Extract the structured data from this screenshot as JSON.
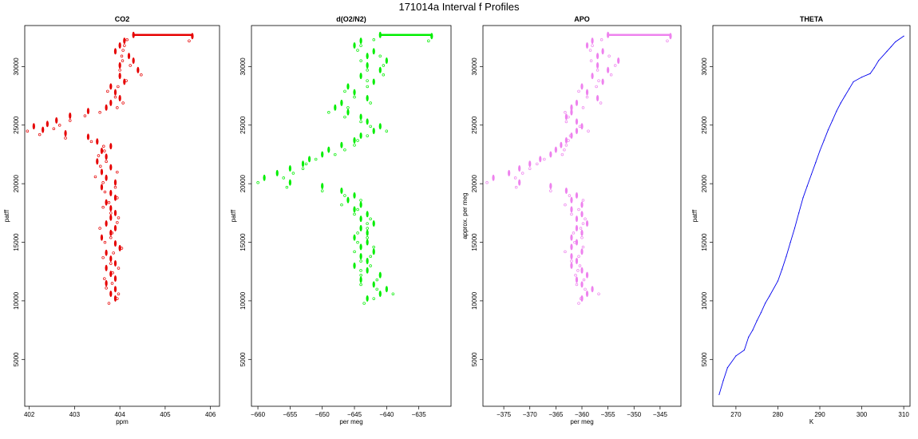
{
  "title": "171014a   Interval f Profiles",
  "chart_data": [
    {
      "type": "scatter",
      "title": "CO2",
      "xlabel": "ppm",
      "ylabel": "patff",
      "xlim": [
        401.9,
        406.2
      ],
      "ylim": [
        1000,
        33500
      ],
      "xticks": [
        402,
        403,
        404,
        405,
        406
      ],
      "yticks": [
        5000,
        10000,
        15000,
        20000,
        25000,
        30000
      ],
      "color": "#e60000",
      "points": [
        [
          404.3,
          32700
        ],
        [
          405.6,
          32600
        ],
        [
          404.1,
          32200
        ],
        [
          404.0,
          31800
        ],
        [
          403.9,
          31300
        ],
        [
          404.2,
          30900
        ],
        [
          404.3,
          30500
        ],
        [
          404.0,
          30100
        ],
        [
          404.4,
          29700
        ],
        [
          404.0,
          29200
        ],
        [
          404.1,
          28700
        ],
        [
          403.8,
          28300
        ],
        [
          403.9,
          27800
        ],
        [
          404.0,
          27300
        ],
        [
          403.8,
          26900
        ],
        [
          403.7,
          26500
        ],
        [
          403.3,
          26200
        ],
        [
          402.9,
          25800
        ],
        [
          402.6,
          25400
        ],
        [
          402.4,
          25100
        ],
        [
          402.1,
          24900
        ],
        [
          402.3,
          24600
        ],
        [
          402.8,
          24300
        ],
        [
          403.3,
          24000
        ],
        [
          403.5,
          23600
        ],
        [
          403.8,
          23200
        ],
        [
          403.6,
          22800
        ],
        [
          403.7,
          22300
        ],
        [
          403.5,
          21900
        ],
        [
          403.8,
          21400
        ],
        [
          403.6,
          21000
        ],
        [
          403.7,
          20500
        ],
        [
          403.9,
          20100
        ],
        [
          403.6,
          19700
        ],
        [
          403.8,
          19200
        ],
        [
          403.9,
          18800
        ],
        [
          403.7,
          18400
        ],
        [
          403.8,
          17900
        ],
        [
          403.9,
          17500
        ],
        [
          403.8,
          17100
        ],
        [
          403.7,
          16600
        ],
        [
          403.9,
          16200
        ],
        [
          403.8,
          15800
        ],
        [
          403.6,
          15400
        ],
        [
          403.9,
          14900
        ],
        [
          404.0,
          14500
        ],
        [
          403.7,
          14100
        ],
        [
          403.8,
          13600
        ],
        [
          403.9,
          13200
        ],
        [
          403.7,
          12800
        ],
        [
          403.8,
          12300
        ],
        [
          403.9,
          11900
        ],
        [
          403.7,
          11500
        ],
        [
          403.9,
          11000
        ],
        [
          403.8,
          10600
        ],
        [
          403.9,
          10200
        ]
      ]
    },
    {
      "type": "scatter",
      "title": "d(O2/N2)",
      "xlabel": "per meg",
      "ylabel": "patff",
      "xlim": [
        -661,
        -630
      ],
      "ylim": [
        1000,
        33500
      ],
      "xticks": [
        -660,
        -655,
        -650,
        -645,
        -640,
        -635
      ],
      "yticks": [
        5000,
        10000,
        15000,
        20000,
        25000,
        30000
      ],
      "color": "#00ee00",
      "points": [
        [
          -641,
          32700
        ],
        [
          -633,
          32600
        ],
        [
          -644,
          32200
        ],
        [
          -645,
          31800
        ],
        [
          -642,
          31300
        ],
        [
          -643,
          30900
        ],
        [
          -640,
          30500
        ],
        [
          -643,
          30100
        ],
        [
          -641,
          29700
        ],
        [
          -644,
          29200
        ],
        [
          -642,
          28700
        ],
        [
          -646,
          28300
        ],
        [
          -645,
          27800
        ],
        [
          -643,
          27300
        ],
        [
          -647,
          26900
        ],
        [
          -648,
          26500
        ],
        [
          -646,
          26100
        ],
        [
          -644,
          25700
        ],
        [
          -643,
          25300
        ],
        [
          -641,
          24900
        ],
        [
          -642,
          24500
        ],
        [
          -644,
          24100
        ],
        [
          -645,
          23700
        ],
        [
          -647,
          23300
        ],
        [
          -649,
          22900
        ],
        [
          -650,
          22500
        ],
        [
          -652,
          22100
        ],
        [
          -653,
          21700
        ],
        [
          -655,
          21300
        ],
        [
          -657,
          20900
        ],
        [
          -659,
          20500
        ],
        [
          -655,
          20100
        ],
        [
          -650,
          19800
        ],
        [
          -647,
          19400
        ],
        [
          -645,
          19000
        ],
        [
          -646,
          18600
        ],
        [
          -644,
          18200
        ],
        [
          -645,
          17800
        ],
        [
          -643,
          17400
        ],
        [
          -644,
          17000
        ],
        [
          -642,
          16600
        ],
        [
          -644,
          16200
        ],
        [
          -643,
          15800
        ],
        [
          -645,
          15400
        ],
        [
          -643,
          15000
        ],
        [
          -644,
          14600
        ],
        [
          -642,
          14200
        ],
        [
          -644,
          13800
        ],
        [
          -643,
          13400
        ],
        [
          -645,
          13000
        ],
        [
          -643,
          12600
        ],
        [
          -641,
          12200
        ],
        [
          -644,
          11800
        ],
        [
          -642,
          11400
        ],
        [
          -640,
          11000
        ],
        [
          -641,
          10600
        ],
        [
          -643,
          10200
        ]
      ]
    },
    {
      "type": "scatter",
      "title": "APO",
      "xlabel": "per meg",
      "ylabel": "approx. per meg",
      "xlim": [
        -379,
        -341
      ],
      "ylim": [
        1000,
        33500
      ],
      "xticks": [
        -375,
        -370,
        -365,
        -360,
        -355,
        -350,
        -345
      ],
      "yticks": [
        5000,
        10000,
        15000,
        20000,
        25000,
        30000
      ],
      "color": "#ee82ee",
      "points": [
        [
          -355,
          32700
        ],
        [
          -343,
          32600
        ],
        [
          -358,
          32200
        ],
        [
          -359,
          31800
        ],
        [
          -356,
          31300
        ],
        [
          -357,
          30900
        ],
        [
          -353,
          30500
        ],
        [
          -357,
          30100
        ],
        [
          -355,
          29700
        ],
        [
          -358,
          29200
        ],
        [
          -356,
          28700
        ],
        [
          -360,
          28300
        ],
        [
          -359,
          27800
        ],
        [
          -357,
          27300
        ],
        [
          -361,
          26900
        ],
        [
          -362,
          26500
        ],
        [
          -362,
          26100
        ],
        [
          -363,
          25700
        ],
        [
          -361,
          25300
        ],
        [
          -360,
          24900
        ],
        [
          -361,
          24500
        ],
        [
          -362,
          24100
        ],
        [
          -363,
          23700
        ],
        [
          -364,
          23300
        ],
        [
          -365,
          22900
        ],
        [
          -366,
          22500
        ],
        [
          -368,
          22100
        ],
        [
          -370,
          21700
        ],
        [
          -372,
          21300
        ],
        [
          -374,
          20900
        ],
        [
          -377,
          20500
        ],
        [
          -372,
          20100
        ],
        [
          -366,
          19800
        ],
        [
          -363,
          19400
        ],
        [
          -361,
          19000
        ],
        [
          -362,
          18600
        ],
        [
          -360,
          18200
        ],
        [
          -362,
          17800
        ],
        [
          -360,
          17400
        ],
        [
          -361,
          17000
        ],
        [
          -359,
          16600
        ],
        [
          -361,
          16200
        ],
        [
          -360,
          15800
        ],
        [
          -362,
          15400
        ],
        [
          -361,
          15000
        ],
        [
          -362,
          14600
        ],
        [
          -360,
          14200
        ],
        [
          -362,
          13800
        ],
        [
          -361,
          13400
        ],
        [
          -362,
          13000
        ],
        [
          -360,
          12600
        ],
        [
          -359,
          12200
        ],
        [
          -361,
          11800
        ],
        [
          -360,
          11400
        ],
        [
          -358,
          11000
        ],
        [
          -359,
          10600
        ],
        [
          -360,
          10200
        ]
      ]
    },
    {
      "type": "line",
      "title": "THETA",
      "xlabel": "K",
      "ylabel": "patff",
      "xlim": [
        264.5,
        311.5
      ],
      "ylim": [
        1000,
        33500
      ],
      "xticks": [
        270,
        280,
        290,
        300,
        310
      ],
      "yticks": [
        5000,
        10000,
        15000,
        20000,
        25000,
        30000
      ],
      "color": "#0000ee",
      "points": [
        [
          266,
          2000
        ],
        [
          267,
          3200
        ],
        [
          268,
          4300
        ],
        [
          270,
          5300
        ],
        [
          272,
          5800
        ],
        [
          273,
          6900
        ],
        [
          274,
          7500
        ],
        [
          275,
          8300
        ],
        [
          276,
          9000
        ],
        [
          277,
          9800
        ],
        [
          278,
          10400
        ],
        [
          280,
          11700
        ],
        [
          281,
          12700
        ],
        [
          282,
          13800
        ],
        [
          283,
          15000
        ],
        [
          284,
          16200
        ],
        [
          285,
          17500
        ],
        [
          286,
          18800
        ],
        [
          287,
          19800
        ],
        [
          288,
          20800
        ],
        [
          289,
          21800
        ],
        [
          290,
          22800
        ],
        [
          291,
          23700
        ],
        [
          292,
          24600
        ],
        [
          293,
          25400
        ],
        [
          294,
          26200
        ],
        [
          295,
          26900
        ],
        [
          296,
          27500
        ],
        [
          297,
          28100
        ],
        [
          298,
          28700
        ],
        [
          300,
          29100
        ],
        [
          302,
          29400
        ],
        [
          303,
          29900
        ],
        [
          304,
          30500
        ],
        [
          306,
          31300
        ],
        [
          307,
          31700
        ],
        [
          308,
          32100
        ],
        [
          310,
          32600
        ]
      ]
    }
  ]
}
